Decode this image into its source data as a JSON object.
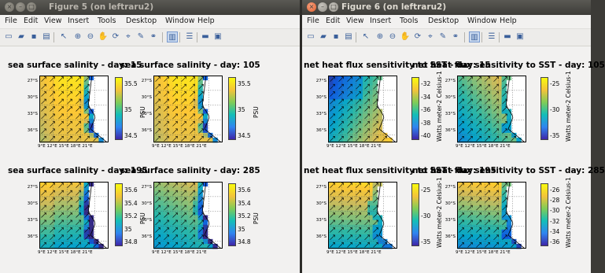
{
  "windows": [
    {
      "title": "Figure 5 (on leftraru2)",
      "menus": [
        "File",
        "Edit",
        "View",
        "Insert",
        "Tools",
        "Desktop",
        "Window",
        "Help"
      ],
      "toolbar_icons": [
        "new-figure-icon",
        "open-file-icon",
        "save-icon",
        "print-icon",
        "select-arrow-icon",
        "zoom-in-icon",
        "zoom-out-icon",
        "pan-icon",
        "rotate-icon",
        "data-cursor-icon",
        "brush-icon",
        "link-icon",
        "colorbar-icon",
        "legend-icon",
        "hide-plot-tools-icon",
        "show-plot-tools-icon"
      ],
      "subplots": [
        {
          "title": "sea surface salinity - day: 15",
          "variable": "salinity",
          "unit": "PSU",
          "cticks": [
            "35.5",
            "35",
            "34.5"
          ],
          "ylabels": [
            "27°S",
            "30°S",
            "33°S",
            "36°S"
          ],
          "xlabels": "9°E 12°E 15°E 18°E 21°E"
        },
        {
          "title": "sea surface salinity - day: 105",
          "variable": "salinity",
          "unit": "PSU",
          "cticks": [
            "35.5",
            "35",
            "34.5"
          ],
          "ylabels": [
            "27°S",
            "30°S",
            "33°S",
            "36°S"
          ],
          "xlabels": "9°E 12°E 15°E 18°E 21°E"
        },
        {
          "title": "sea surface salinity - day: 195",
          "variable": "salinity",
          "unit": "PSU",
          "cticks": [
            "35.6",
            "35.4",
            "35.2",
            "35",
            "34.8"
          ],
          "ylabels": [
            "27°S",
            "30°S",
            "33°S",
            "36°S"
          ],
          "xlabels": "9°E 12°E 15°E 18°E 21°E"
        },
        {
          "title": "sea surface salinity - day: 285",
          "variable": "salinity",
          "unit": "PSU",
          "cticks": [
            "35.6",
            "35.4",
            "35.2",
            "35",
            "34.8"
          ],
          "ylabels": [
            "27°S",
            "30°S",
            "33°S",
            "36°S"
          ],
          "xlabels": "9°E 12°E 15°E 18°E 21°E"
        }
      ]
    },
    {
      "title": "Figure 6 (on leftraru2)",
      "menus": [
        "File",
        "Edit",
        "View",
        "Insert",
        "Tools",
        "Desktop",
        "Window",
        "Help"
      ],
      "toolbar_icons": [
        "new-figure-icon",
        "open-file-icon",
        "save-icon",
        "print-icon",
        "select-arrow-icon",
        "zoom-in-icon",
        "zoom-out-icon",
        "pan-icon",
        "rotate-icon",
        "data-cursor-icon",
        "brush-icon",
        "link-icon",
        "colorbar-icon",
        "legend-icon",
        "hide-plot-tools-icon",
        "show-plot-tools-icon"
      ],
      "subplots": [
        {
          "title": "net heat flux sensitivity to SST - day: 15",
          "variable": "heatflux",
          "unit": "Watts meter-2 Celsius-1",
          "cticks": [
            "-32",
            "-34",
            "-36",
            "-38",
            "-40"
          ],
          "ylabels": [
            "27°S",
            "30°S",
            "33°S",
            "36°S"
          ],
          "xlabels": "9°E 12°E 15°E 18°E 21°E"
        },
        {
          "title": "net heat flux sensitivity to SST - day: 105",
          "variable": "heatflux",
          "unit": "Watts meter-2 Celsius-1",
          "cticks": [
            "-25",
            "-30",
            "-35"
          ],
          "ylabels": [
            "27°S",
            "30°S",
            "33°S",
            "36°S"
          ],
          "xlabels": "9°E 12°E 15°E 18°E 21°E"
        },
        {
          "title": "net heat flux sensitivity to SST - day: 195",
          "variable": "heatflux",
          "unit": "Watts meter-2 Celsius-1",
          "cticks": [
            "-25",
            "-30",
            "-35"
          ],
          "ylabels": [
            "27°S",
            "30°S",
            "33°S",
            "36°S"
          ],
          "xlabels": "9°E 12°E 15°E 18°E 21°E"
        },
        {
          "title": "net heat flux sensitivity to SST - day: 285",
          "variable": "heatflux",
          "unit": "Watts meter-2 Celsius-1",
          "cticks": [
            "-26",
            "-28",
            "-30",
            "-32",
            "-34",
            "-36"
          ],
          "ylabels": [
            "27°S",
            "30°S",
            "33°S",
            "36°S"
          ],
          "xlabels": "9°E 12°E 15°E 18°E 21°E"
        }
      ]
    }
  ],
  "colors": {
    "parula": [
      "#352a87",
      "#0f5cdd",
      "#1481d6",
      "#06a4ca",
      "#2eb7a4",
      "#87bf77",
      "#d1bb59",
      "#fec832",
      "#f9fb0e"
    ],
    "land": "#ffffff",
    "title_active": "#dfdbd2"
  }
}
